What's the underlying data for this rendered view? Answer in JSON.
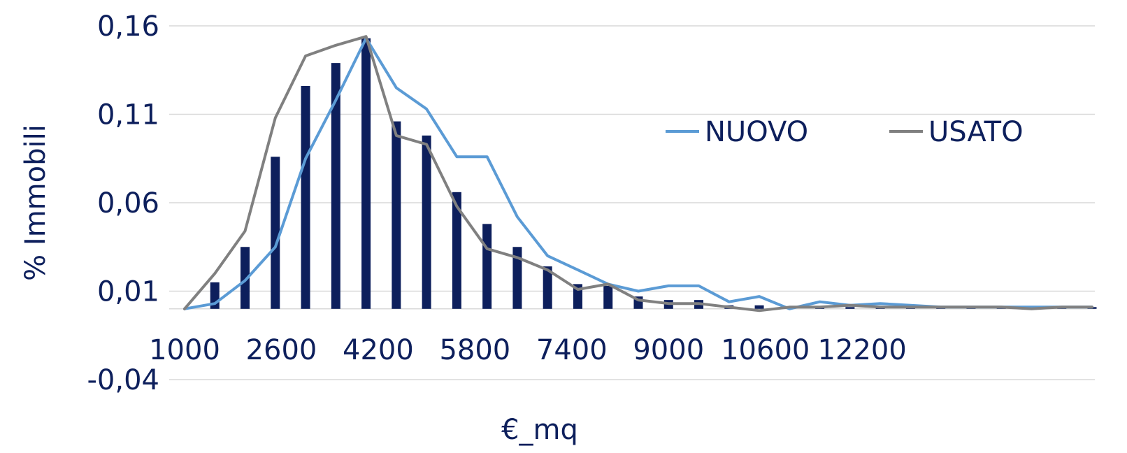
{
  "chart_data": {
    "type": "bar",
    "xlabel": "€_mq",
    "ylabel": "% Immobili",
    "ylim": [
      -0.04,
      0.16
    ],
    "grid": true,
    "legend": "right",
    "y_ticks": [
      "0,16",
      "0,11",
      "0,06",
      "0,01",
      "-0,04"
    ],
    "y_tick_values": [
      0.16,
      0.11,
      0.06,
      0.01,
      -0.04
    ],
    "x_ticks": [
      "1000",
      "2600",
      "4200",
      "5800",
      "7400",
      "9000",
      "10600",
      "12200"
    ],
    "x_tick_values": [
      1000,
      2600,
      4200,
      5800,
      7400,
      9000,
      10600,
      12200
    ],
    "x": [
      1000,
      1500,
      2000,
      2500,
      3000,
      3500,
      4000,
      4500,
      5000,
      5500,
      6000,
      6500,
      7000,
      7500,
      8000,
      8500,
      9000,
      9500,
      10000,
      10500,
      11000,
      11500,
      12000,
      12500,
      13000,
      13500,
      14000,
      14500,
      15000,
      15500,
      16000
    ],
    "bars": {
      "color": "#0d1f5c",
      "values": [
        0.0,
        0.015,
        0.035,
        0.086,
        0.126,
        0.139,
        0.153,
        0.106,
        0.098,
        0.066,
        0.048,
        0.035,
        0.024,
        0.014,
        0.013,
        0.007,
        0.005,
        0.005,
        0.002,
        0.002,
        0.001,
        0.001,
        0.001,
        0.001,
        0.001,
        0.001,
        0.001,
        0.001,
        0.001,
        0.001,
        0.001
      ]
    },
    "series": [
      {
        "name": "NUOVO",
        "color": "#5b9bd5",
        "values": [
          0.0,
          0.003,
          0.016,
          0.035,
          0.085,
          0.118,
          0.153,
          0.125,
          0.113,
          0.086,
          0.086,
          0.052,
          0.03,
          0.022,
          0.014,
          0.01,
          0.013,
          0.013,
          0.004,
          0.007,
          0.0,
          0.004,
          0.002,
          0.003,
          0.002,
          0.001,
          0.001,
          0.001,
          0.001,
          0.001,
          0.001
        ]
      },
      {
        "name": "USATO",
        "color": "#808080",
        "values": [
          0.0,
          0.02,
          0.044,
          0.108,
          0.143,
          0.149,
          0.154,
          0.098,
          0.093,
          0.058,
          0.034,
          0.029,
          0.022,
          0.011,
          0.014,
          0.005,
          0.003,
          0.003,
          0.001,
          -0.001,
          0.001,
          0.001,
          0.002,
          0.001,
          0.001,
          0.001,
          0.001,
          0.001,
          0.0,
          0.001,
          0.001
        ]
      }
    ]
  }
}
